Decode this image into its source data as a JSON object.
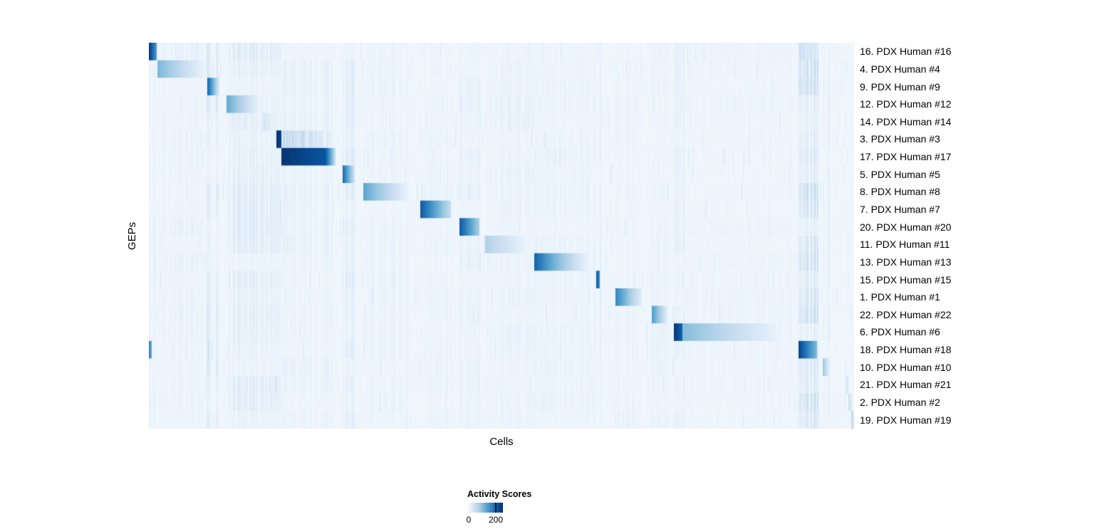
{
  "chart_data": {
    "type": "heatmap",
    "title": "",
    "xlabel": "Cells",
    "ylabel": "GEPs",
    "value_range": [
      0,
      250
    ],
    "background_value": 8,
    "colormap": "Blues",
    "colormap_stops": [
      {
        "pos": 0.0,
        "color": "#f7fbff"
      },
      {
        "pos": 0.125,
        "color": "#deebf7"
      },
      {
        "pos": 0.25,
        "color": "#c6dbef"
      },
      {
        "pos": 0.375,
        "color": "#9ecae1"
      },
      {
        "pos": 0.5,
        "color": "#6baed6"
      },
      {
        "pos": 0.625,
        "color": "#4292c6"
      },
      {
        "pos": 0.75,
        "color": "#2171b5"
      },
      {
        "pos": 0.875,
        "color": "#08519c"
      },
      {
        "pos": 1.0,
        "color": "#08306b"
      }
    ],
    "legend": {
      "title": "Activity Scores",
      "tick_labels": [
        "0",
        "200"
      ],
      "tick_values": [
        0,
        200
      ],
      "min": 0,
      "max": 250
    },
    "global_stripes": [
      {
        "x0": 0.0,
        "x1": 0.011,
        "v": 16
      },
      {
        "x0": 0.013,
        "x1": 0.082,
        "v": 9
      },
      {
        "x0": 0.08,
        "x1": 0.101,
        "v": 20
      },
      {
        "x0": 0.11,
        "x1": 0.188,
        "v": 18
      },
      {
        "x0": 0.188,
        "x1": 0.26,
        "v": 9
      },
      {
        "x0": 0.275,
        "x1": 0.294,
        "v": 15
      },
      {
        "x0": 0.304,
        "x1": 0.372,
        "v": 8
      },
      {
        "x0": 0.385,
        "x1": 0.43,
        "v": 8
      },
      {
        "x0": 0.44,
        "x1": 0.47,
        "v": 9
      },
      {
        "x0": 0.477,
        "x1": 0.545,
        "v": 8
      },
      {
        "x0": 0.547,
        "x1": 0.626,
        "v": 8
      },
      {
        "x0": 0.63,
        "x1": 0.642,
        "v": 11
      },
      {
        "x0": 0.662,
        "x1": 0.7,
        "v": 7
      },
      {
        "x0": 0.713,
        "x1": 0.737,
        "v": 7
      },
      {
        "x0": 0.745,
        "x1": 0.76,
        "v": 11
      },
      {
        "x0": 0.76,
        "x1": 0.912,
        "v": 5
      },
      {
        "x0": 0.922,
        "x1": 0.95,
        "v": 32
      },
      {
        "x0": 0.956,
        "x1": 0.966,
        "v": 12
      }
    ],
    "rows": [
      {
        "label": "16. PDX Human #16",
        "segments": [
          {
            "x0": 0.0,
            "x1": 0.011,
            "v0": 240,
            "v1": 140
          },
          {
            "x0": 0.922,
            "x1": 0.944,
            "v0": 70,
            "v1": 35,
            "striped": true
          }
        ]
      },
      {
        "label": "4. PDX Human #4",
        "segments": [
          {
            "x0": 0.012,
            "x1": 0.085,
            "v0": 115,
            "v1": 6
          }
        ]
      },
      {
        "label": "9. PDX Human #9",
        "segments": [
          {
            "x0": 0.082,
            "x1": 0.1,
            "v0": 210,
            "v1": 30
          },
          {
            "x0": 0.922,
            "x1": 0.944,
            "v0": 50,
            "v1": 25,
            "striped": true
          }
        ]
      },
      {
        "label": "12. PDX Human #12",
        "segments": [
          {
            "x0": 0.11,
            "x1": 0.16,
            "v0": 130,
            "v1": 6
          }
        ]
      },
      {
        "label": "14. PDX Human #14",
        "segments": [
          {
            "x0": 0.11,
            "x1": 0.16,
            "v0": 25,
            "v1": 12,
            "striped": true
          },
          {
            "x0": 0.16,
            "x1": 0.187,
            "v0": 55,
            "v1": 18,
            "striped": true
          }
        ]
      },
      {
        "label": "3. PDX Human #3",
        "segments": [
          {
            "x0": 0.18,
            "x1": 0.188,
            "v0": 250,
            "v1": 230
          },
          {
            "x0": 0.188,
            "x1": 0.258,
            "v0": 85,
            "v1": 35,
            "striped": true
          }
        ]
      },
      {
        "label": "17. PDX Human #17",
        "segments": [
          {
            "x0": 0.188,
            "x1": 0.25,
            "v0": 245,
            "v1": 215
          },
          {
            "x0": 0.25,
            "x1": 0.264,
            "v0": 215,
            "v1": 60
          }
        ]
      },
      {
        "label": "5. PDX Human #5",
        "segments": [
          {
            "x0": 0.275,
            "x1": 0.292,
            "v0": 195,
            "v1": 45
          }
        ]
      },
      {
        "label": "8. PDX Human #8",
        "segments": [
          {
            "x0": 0.304,
            "x1": 0.372,
            "v0": 135,
            "v1": 6
          }
        ]
      },
      {
        "label": "7. PDX Human #7",
        "segments": [
          {
            "x0": 0.385,
            "x1": 0.428,
            "v0": 210,
            "v1": 60
          }
        ]
      },
      {
        "label": "20. PDX Human #20",
        "segments": [
          {
            "x0": 0.44,
            "x1": 0.469,
            "v0": 215,
            "v1": 80
          }
        ]
      },
      {
        "label": "11. PDX Human #11",
        "segments": [
          {
            "x0": 0.477,
            "x1": 0.543,
            "v0": 80,
            "v1": 6
          }
        ]
      },
      {
        "label": "13. PDX Human #13",
        "segments": [
          {
            "x0": 0.547,
            "x1": 0.575,
            "v0": 200,
            "v1": 120
          },
          {
            "x0": 0.575,
            "x1": 0.625,
            "v0": 120,
            "v1": 10
          }
        ]
      },
      {
        "label": "15. PDX Human #15",
        "segments": [
          {
            "x0": 0.634,
            "x1": 0.64,
            "v0": 230,
            "v1": 150
          }
        ]
      },
      {
        "label": "1. PDX Human #1",
        "segments": [
          {
            "x0": 0.662,
            "x1": 0.699,
            "v0": 170,
            "v1": 25
          }
        ]
      },
      {
        "label": "22. PDX Human #22",
        "segments": [
          {
            "x0": 0.713,
            "x1": 0.736,
            "v0": 150,
            "v1": 25
          }
        ]
      },
      {
        "label": "6. PDX Human #6",
        "segments": [
          {
            "x0": 0.745,
            "x1": 0.757,
            "v0": 245,
            "v1": 200
          },
          {
            "x0": 0.757,
            "x1": 0.912,
            "v0": 110,
            "v1": 4
          }
        ]
      },
      {
        "label": "18. PDX Human #18",
        "segments": [
          {
            "x0": 0.0,
            "x1": 0.004,
            "v0": 170,
            "v1": 120
          },
          {
            "x0": 0.082,
            "x1": 0.09,
            "v0": 55,
            "v1": 25,
            "striped": true
          },
          {
            "x0": 0.922,
            "x1": 0.948,
            "v0": 230,
            "v1": 110
          }
        ]
      },
      {
        "label": "10. PDX Human #10",
        "segments": [
          {
            "x0": 0.956,
            "x1": 0.964,
            "v0": 100,
            "v1": 35
          }
        ]
      },
      {
        "label": "21. PDX Human #21",
        "segments": [
          {
            "x0": 0.988,
            "x1": 0.993,
            "v0": 45,
            "v1": 22
          }
        ]
      },
      {
        "label": "2. PDX Human #2",
        "segments": [
          {
            "x0": 0.992,
            "x1": 0.997,
            "v0": 60,
            "v1": 28
          }
        ]
      },
      {
        "label": "19. PDX Human #19",
        "segments": [
          {
            "x0": 0.996,
            "x1": 1.0,
            "v0": 75,
            "v1": 40
          }
        ]
      }
    ]
  }
}
